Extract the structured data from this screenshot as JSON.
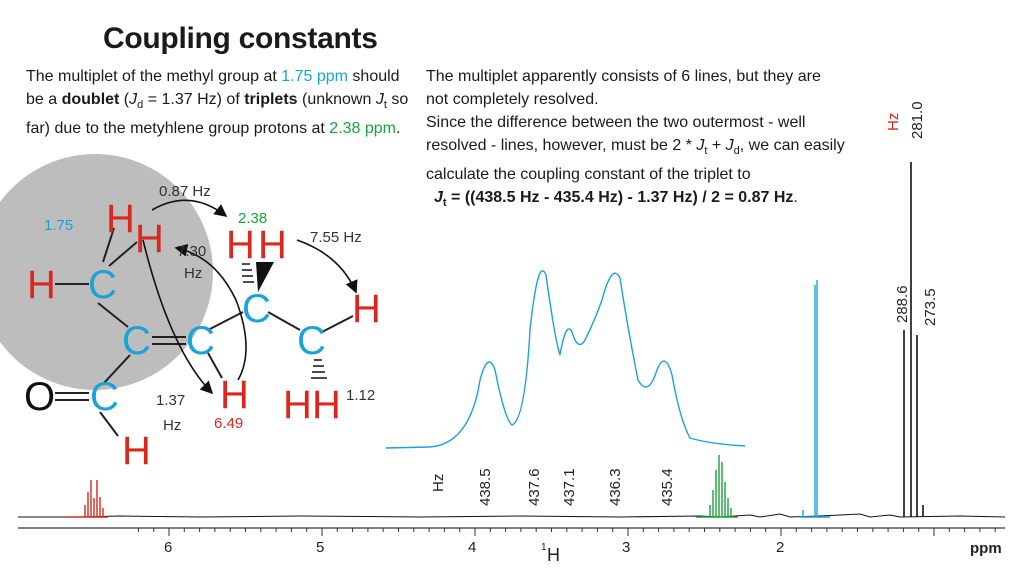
{
  "title": "Coupling constants",
  "left_text": {
    "p1": "The multiplet of the methyl group at ",
    "ppm_methyl": "1.75 ppm",
    "p2": " should be a ",
    "doublet": "doublet",
    "p3": " (",
    "j": "J",
    "j_sub_d": "d",
    "p4": " = 1.37 Hz) of ",
    "triplets": "triplets",
    "p5": " (unknown ",
    "j2": "J",
    "j_sub_t": "t",
    "p6": " so far) due to the metyhlene group protons at ",
    "ppm_methylene": "2.38 ppm",
    "p7": "."
  },
  "right_text": {
    "line1": "The multiplet apparently consists of 6 lines, but they are not completely resolved.",
    "line2a": "Since the difference between the two outermost - well resolved - lines, however, must be 2 * ",
    "jt": "J",
    "jt_sub": "t",
    "plus": " + ",
    "jd": "J",
    "jd_sub": "d",
    "line2b": ", we can easily calculate the coupling constant of the triplet to",
    "eq_j": "J",
    "eq_sub": "t",
    "eq_rest": " = ((438.5 Hz - 435.4 Hz) - 1.37 Hz) / 2 = 0.87 Hz",
    "eq_end": "."
  },
  "molecule": {
    "atoms": {
      "H": "H",
      "C": "C",
      "O": "O"
    },
    "labels": {
      "shift_methyl": "1.75",
      "shift_methylene": "2.38",
      "shift_vinyl": "6.49",
      "j_087": "0.87 Hz",
      "j_730_a": "7.30",
      "j_730_b": "Hz",
      "j_755": "7.55 Hz",
      "j_137_a": "1.37",
      "j_137_b": "Hz",
      "j_112": "1.12"
    }
  },
  "spectrum": {
    "axis_ticks": [
      "6",
      "5",
      "4",
      "3",
      "2"
    ],
    "axis_unit": "ppm",
    "axis_nucleus_sup": "1",
    "axis_nucleus": "H",
    "peak_labels_hz": [
      "438.5",
      "437.6",
      "437.1",
      "436.3",
      "435.4"
    ],
    "hz_unit": "Hz",
    "right_peak_labels": [
      "288.6",
      "273.5",
      "281.0"
    ],
    "right_hz_unit": "Hz",
    "colors": {
      "vinyl": "#d9281e",
      "methylene": "#1aa33a",
      "methyl": "#1aa3d9",
      "other": "#111111",
      "circle": "#bdbdbd"
    }
  }
}
